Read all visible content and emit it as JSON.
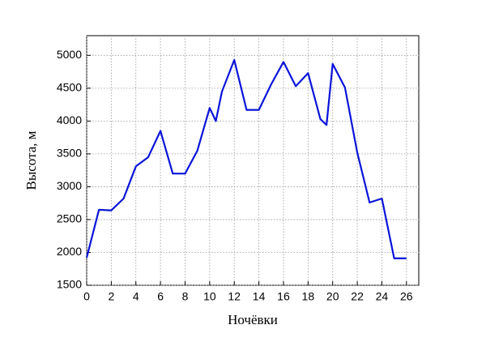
{
  "chart_data": {
    "type": "line",
    "x_label": "Ночёвки",
    "y_label": "Высота, м",
    "x": [
      0,
      1,
      2,
      3,
      4,
      5,
      6,
      7,
      8,
      9,
      10,
      10.5,
      11,
      12,
      13,
      14,
      15,
      16,
      17,
      18,
      19,
      19.5,
      20,
      21,
      22,
      23,
      24,
      25,
      26
    ],
    "series": [
      {
        "name": "Высота",
        "color": "#0a14d8",
        "values": [
          1920,
          2650,
          2640,
          2820,
          3310,
          3450,
          3850,
          3200,
          3200,
          3550,
          4200,
          4000,
          4450,
          4930,
          4170,
          4170,
          4560,
          4900,
          4530,
          4730,
          4030,
          3940,
          4870,
          4510,
          3520,
          2760,
          2820,
          1910,
          1910
        ]
      }
    ],
    "xlim": [
      0,
      27
    ],
    "xticks": [
      0,
      2,
      4,
      6,
      8,
      10,
      12,
      14,
      16,
      18,
      20,
      22,
      24,
      26
    ],
    "ylim": [
      1500,
      5300
    ],
    "yticks": [
      1500,
      2000,
      2500,
      3000,
      3500,
      4000,
      4500,
      5000
    ],
    "grid": true
  }
}
